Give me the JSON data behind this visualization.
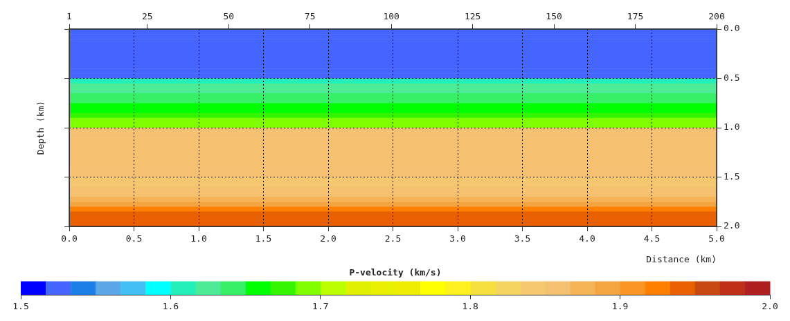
{
  "chart_data": {
    "type": "heatmap",
    "xlabel": "Distance (km)",
    "ylabel": "Depth (km)",
    "clabel": "P-velocity (km/s)",
    "cells": [
      [
        1.525
      ],
      [
        1.525
      ],
      [
        1.525
      ],
      [
        1.525
      ],
      [
        1.525
      ],
      [
        1.525
      ],
      [
        1.525
      ],
      [
        1.525
      ],
      [
        1.525
      ],
      [
        1.525
      ],
      [
        1.608
      ],
      [
        1.625
      ],
      [
        1.625
      ],
      [
        1.642
      ],
      [
        1.642
      ],
      [
        1.658
      ],
      [
        1.658
      ],
      [
        1.675
      ],
      [
        1.692
      ],
      [
        1.692
      ],
      [
        1.858
      ],
      [
        1.858
      ],
      [
        1.858
      ],
      [
        1.858
      ],
      [
        1.858
      ],
      [
        1.858
      ],
      [
        1.858
      ],
      [
        1.858
      ],
      [
        1.858
      ],
      [
        1.858
      ],
      [
        1.842
      ],
      [
        1.842
      ],
      [
        1.858
      ],
      [
        1.858
      ],
      [
        1.875
      ],
      [
        1.892
      ],
      [
        1.925
      ],
      [
        1.942
      ],
      [
        1.942
      ],
      [
        1.942
      ]
    ],
    "xlim": [
      0,
      5
    ],
    "xticks": [
      {
        "value": 0,
        "label": "0.0"
      },
      {
        "value": 0.5,
        "label": "0.5"
      },
      {
        "value": 1,
        "label": "1.0"
      },
      {
        "value": 1.5,
        "label": "1.5"
      },
      {
        "value": 2,
        "label": "2.0"
      },
      {
        "value": 2.5,
        "label": "2.5"
      },
      {
        "value": 3,
        "label": "3.0"
      },
      {
        "value": 3.5,
        "label": "3.5"
      },
      {
        "value": 4,
        "label": "4.0"
      },
      {
        "value": 4.5,
        "label": "4.5"
      },
      {
        "value": 5,
        "label": "5.0"
      }
    ],
    "x2lim": [
      1,
      200
    ],
    "x2ticks": [
      1,
      25,
      50,
      75,
      100,
      125,
      150,
      175,
      200
    ],
    "ylim": [
      2,
      0
    ],
    "yticks": [
      {
        "value": 0,
        "label": "0.0"
      },
      {
        "value": 0.5,
        "label": "0.5"
      },
      {
        "value": 1,
        "label": "1.0"
      },
      {
        "value": 1.5,
        "label": "1.5"
      },
      {
        "value": 2,
        "label": "2.0"
      }
    ],
    "clim": [
      1.5,
      2
    ],
    "cticks": [
      1.5,
      1.6,
      1.7,
      1.8,
      1.9,
      {
        "value": 2,
        "label": "2.0"
      }
    ],
    "grid": true
  }
}
